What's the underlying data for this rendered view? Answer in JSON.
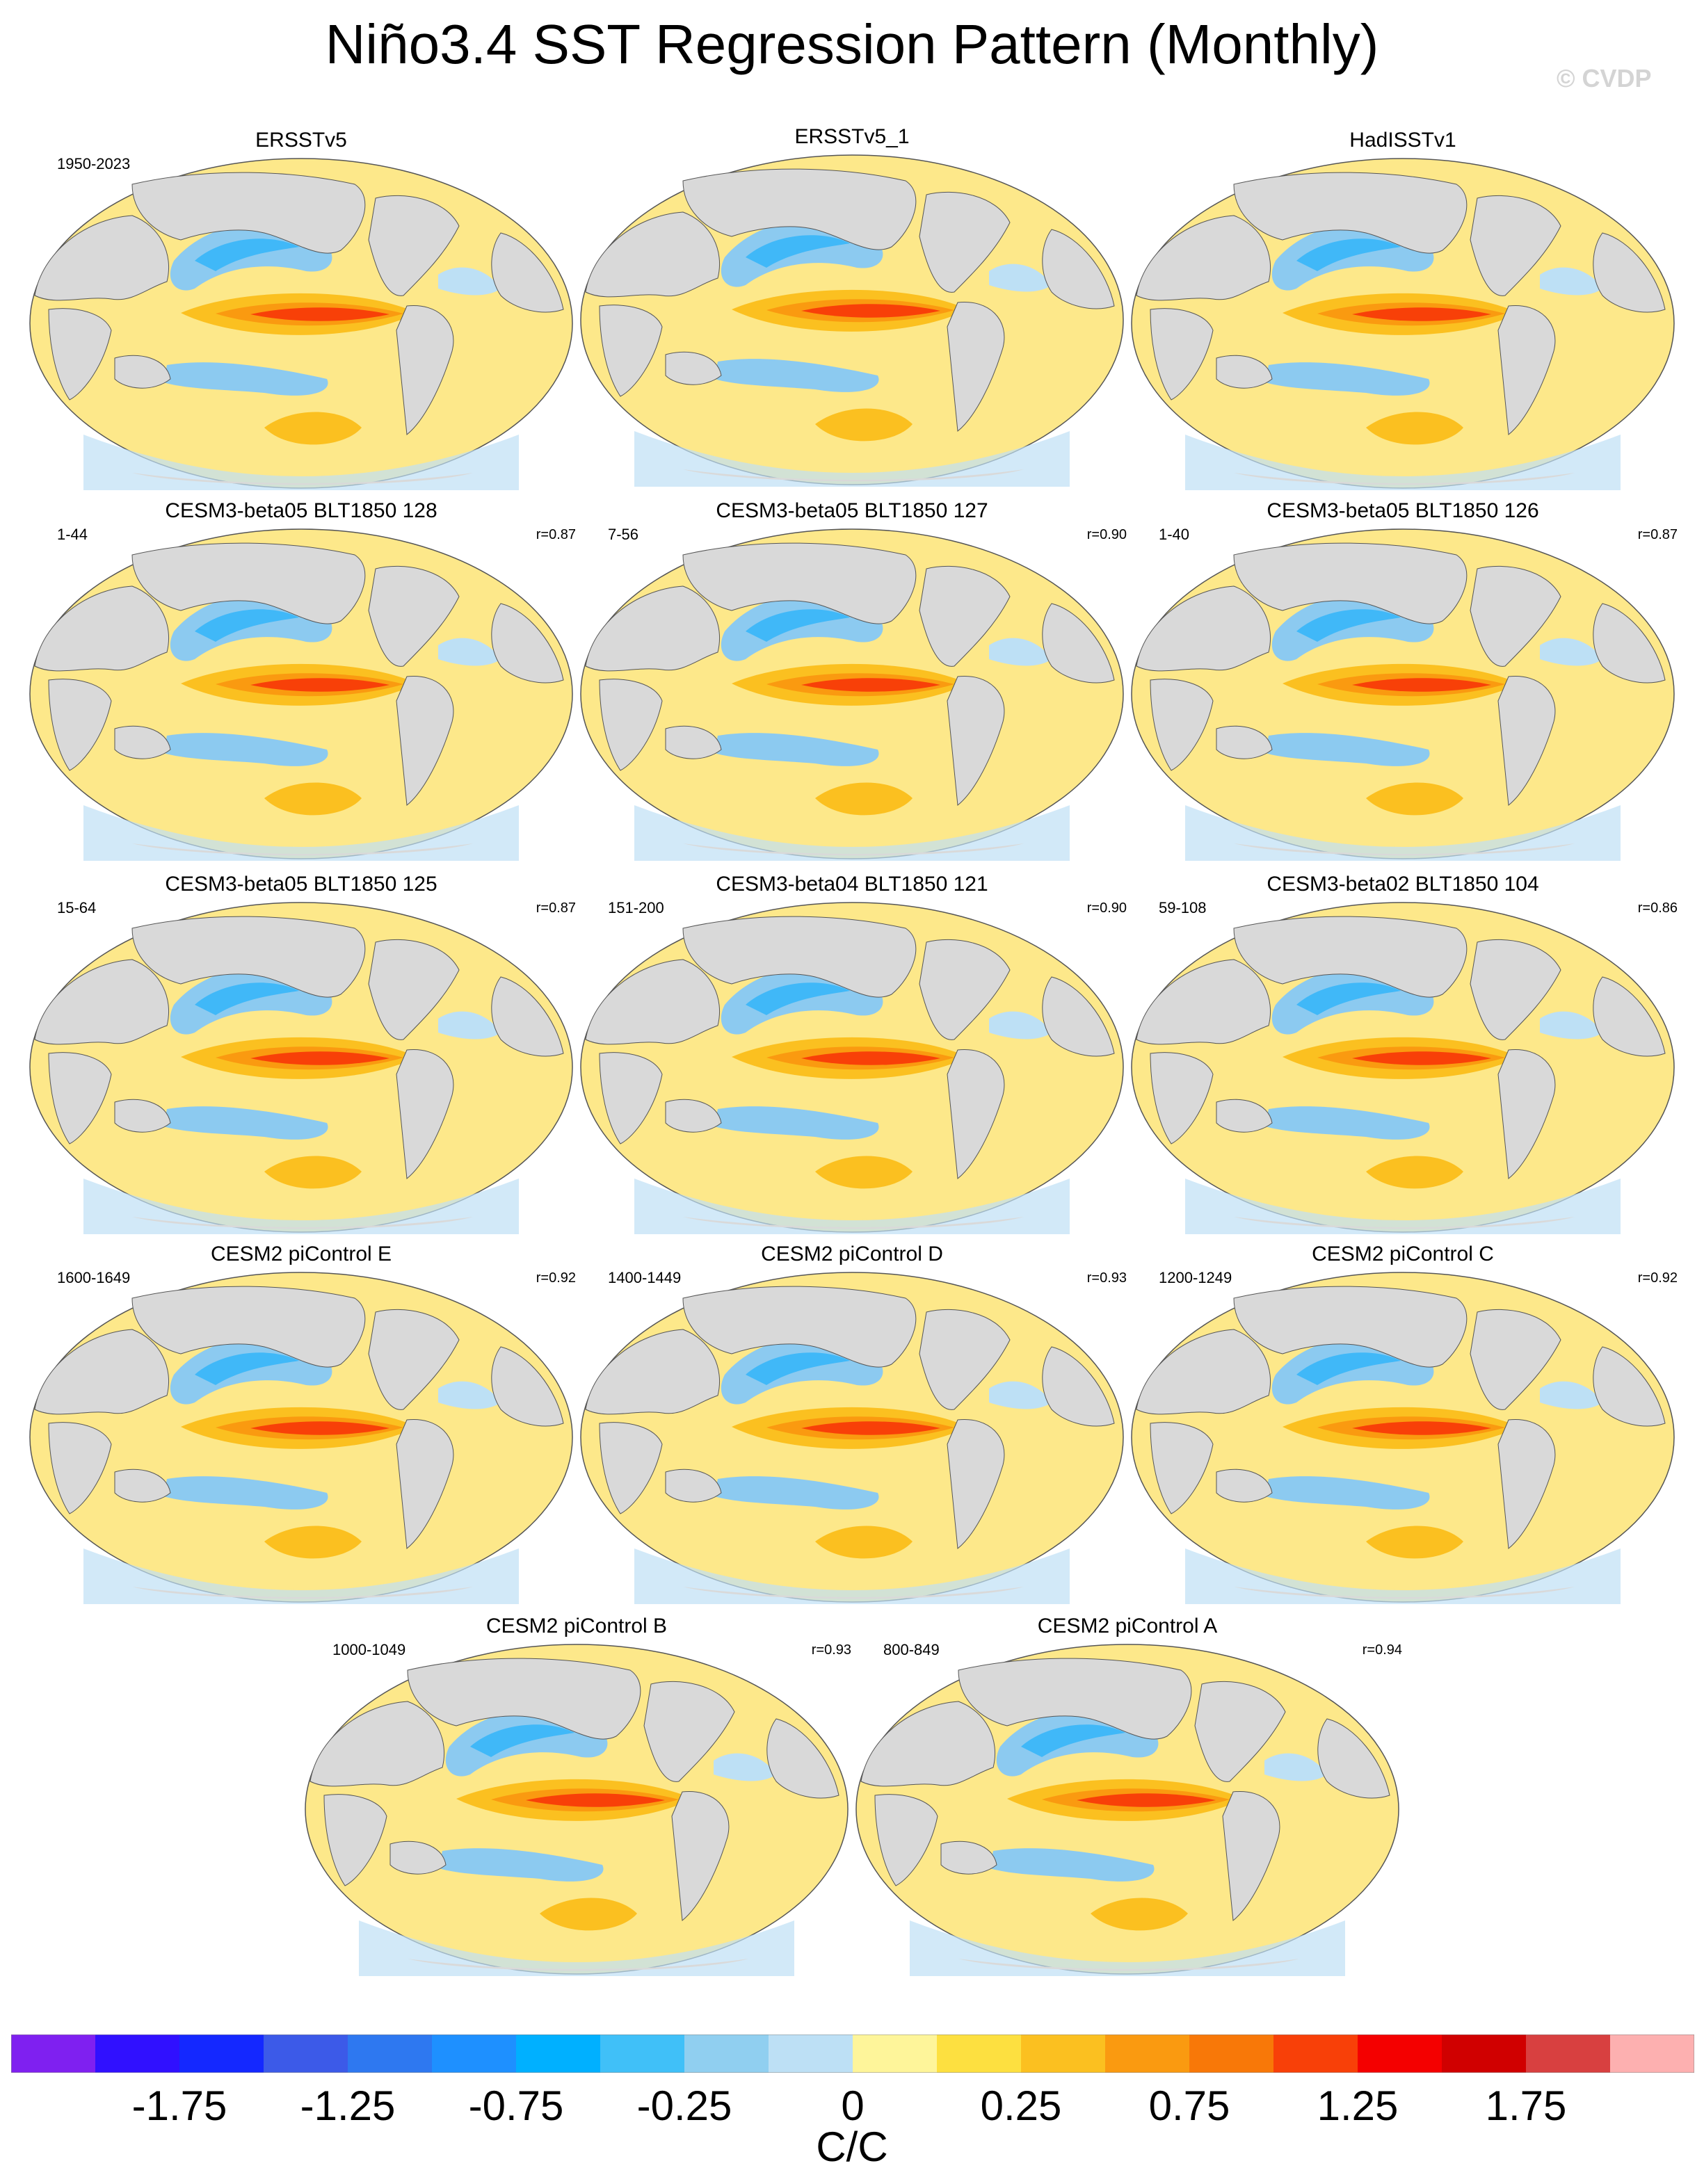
{
  "title": "Niño3.4 SST Regression Pattern (Monthly)",
  "watermark": "© CVDP",
  "panels": [
    {
      "title": "ERSSTv5",
      "period": "1950-2023",
      "corr": ""
    },
    {
      "title": "ERSSTv5_1",
      "period": "",
      "corr": ""
    },
    {
      "title": "HadISSTv1",
      "period": "",
      "corr": ""
    },
    {
      "title": "CESM3-beta05 BLT1850 128",
      "period": "1-44",
      "corr": "r=0.87"
    },
    {
      "title": "CESM3-beta05 BLT1850 127",
      "period": "7-56",
      "corr": "r=0.90"
    },
    {
      "title": "CESM3-beta05 BLT1850 126",
      "period": "1-40",
      "corr": "r=0.87"
    },
    {
      "title": "CESM3-beta05 BLT1850 125",
      "period": "15-64",
      "corr": "r=0.87"
    },
    {
      "title": "CESM3-beta04 BLT1850 121",
      "period": "151-200",
      "corr": "r=0.90"
    },
    {
      "title": "CESM3-beta02 BLT1850 104",
      "period": "59-108",
      "corr": "r=0.86"
    },
    {
      "title": "CESM2 piControl E",
      "period": "1600-1649",
      "corr": "r=0.92"
    },
    {
      "title": "CESM2 piControl D",
      "period": "1400-1449",
      "corr": "r=0.93"
    },
    {
      "title": "CESM2 piControl C",
      "period": "1200-1249",
      "corr": "r=0.92"
    },
    {
      "title": "CESM2 piControl B",
      "period": "1000-1049",
      "corr": "r=0.93"
    },
    {
      "title": "CESM2 piControl A",
      "period": "800-849",
      "corr": "r=0.94"
    }
  ],
  "colorbar": {
    "colors": [
      "#7f20f0",
      "#3010ff",
      "#1428ff",
      "#3c5ae8",
      "#2e78f0",
      "#1e90ff",
      "#00b0ff",
      "#40c0f8",
      "#90cff0",
      "#bde0f5",
      "#fef59a",
      "#fde040",
      "#fbc020",
      "#fa9a10",
      "#f87808",
      "#f84008",
      "#f40000",
      "#d00000",
      "#d84040",
      "#fdb0b0"
    ],
    "tick_labels": [
      "-1.75",
      "-1.25",
      "-0.75",
      "-0.25",
      "0",
      "0.25",
      "0.75",
      "1.25",
      "1.75"
    ],
    "units": "C/C"
  }
}
